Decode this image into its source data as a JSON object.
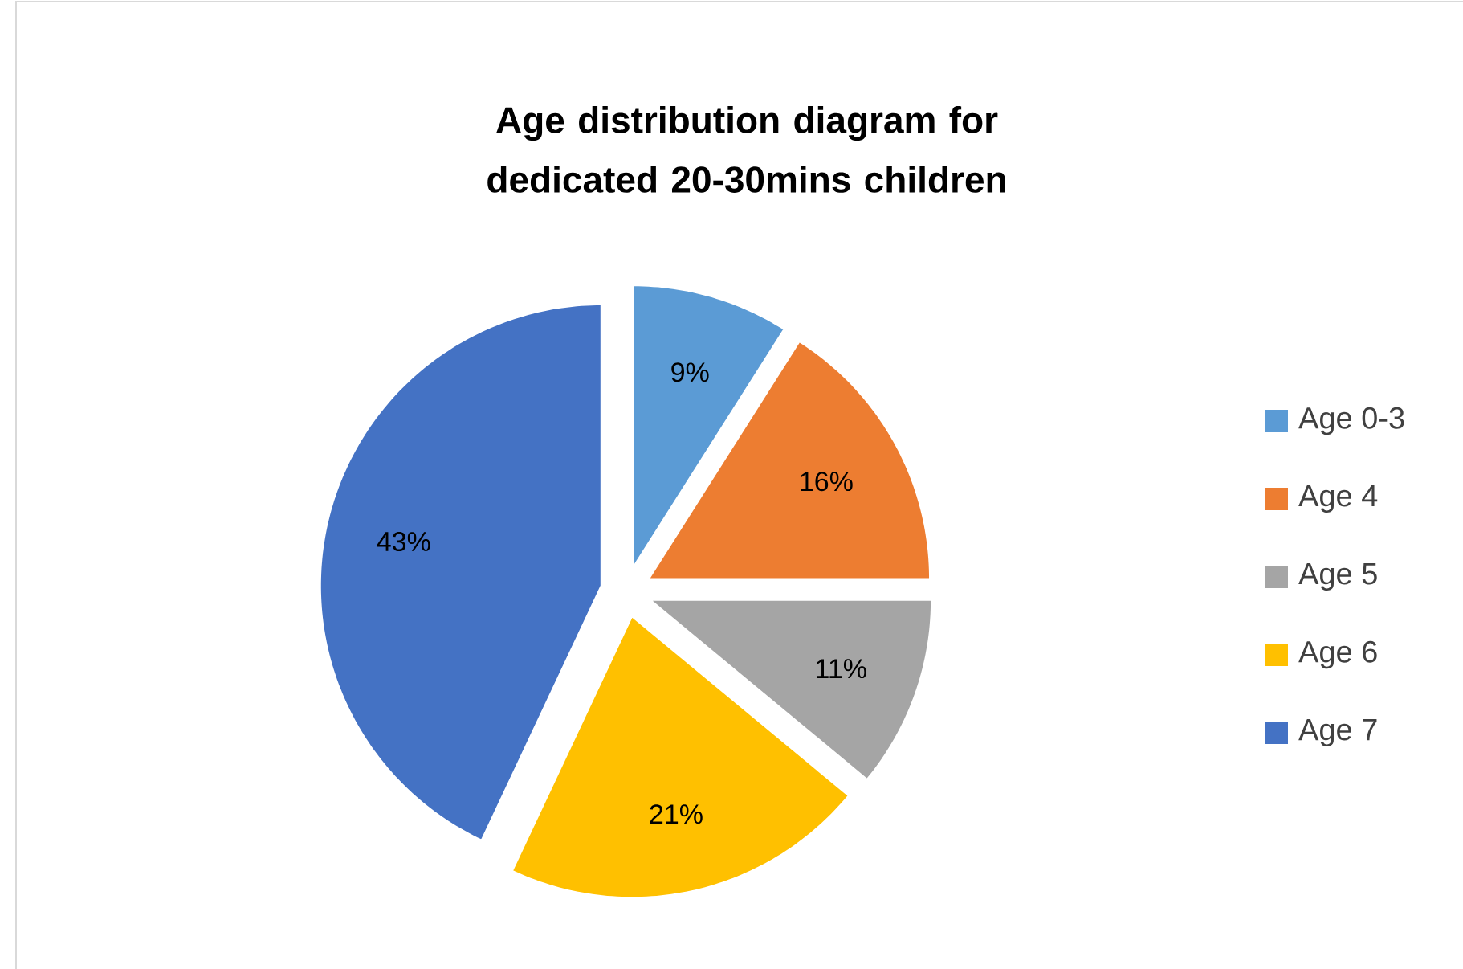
{
  "chart_data": {
    "type": "pie",
    "title": "Age distribution diagram for dedicated 20-30mins children",
    "categories": [
      "Age 0-3",
      "Age 4",
      "Age 5",
      "Age 6",
      "Age 7"
    ],
    "values": [
      9,
      16,
      11,
      21,
      43
    ],
    "value_labels": [
      "9%",
      "16%",
      "11%",
      "21%",
      "43%"
    ],
    "colors": [
      "#5b9bd5",
      "#ed7d31",
      "#a5a5a5",
      "#ffc000",
      "#4472c4"
    ],
    "legend": "right"
  }
}
